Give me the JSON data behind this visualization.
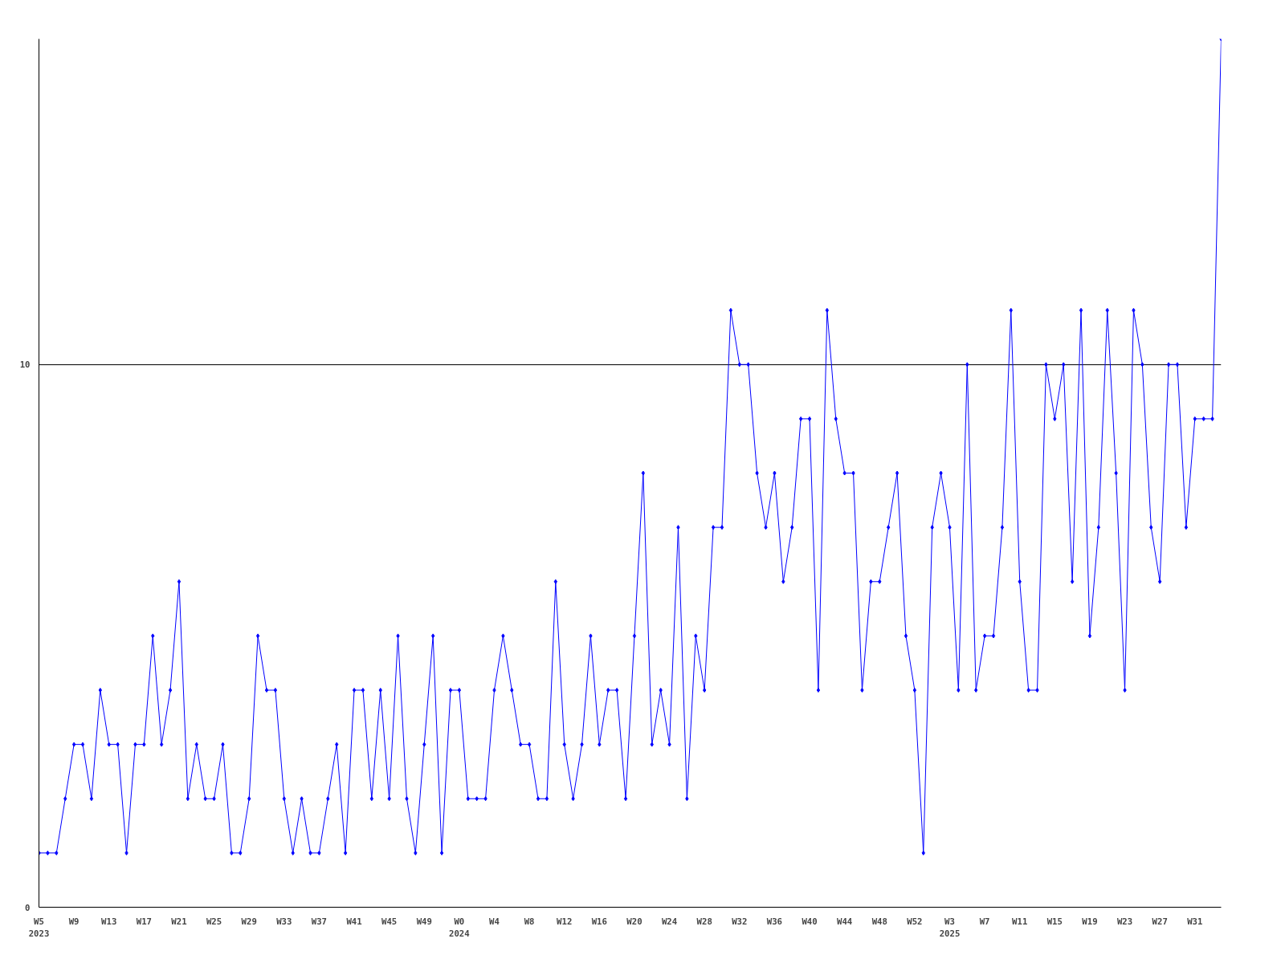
{
  "chart_data": {
    "type": "line",
    "categories": [
      "W5\n2023",
      null,
      null,
      null,
      "W9",
      null,
      null,
      null,
      "W13",
      null,
      null,
      null,
      "W17",
      null,
      null,
      null,
      "W21",
      null,
      null,
      null,
      "W25",
      null,
      null,
      null,
      "W29",
      null,
      null,
      null,
      "W33",
      null,
      null,
      null,
      "W37",
      null,
      null,
      null,
      "W41",
      null,
      null,
      null,
      "W45",
      null,
      null,
      null,
      "W49",
      null,
      null,
      null,
      "W0\n2024",
      null,
      null,
      null,
      "W4",
      null,
      null,
      null,
      "W8",
      null,
      null,
      null,
      "W12",
      null,
      null,
      null,
      "W16",
      null,
      null,
      null,
      "W20",
      null,
      null,
      null,
      "W24",
      null,
      null,
      null,
      "W28",
      null,
      null,
      null,
      "W32",
      null,
      null,
      null,
      "W36",
      null,
      null,
      null,
      "W40",
      null,
      null,
      null,
      "W44",
      null,
      null,
      null,
      "W48",
      null,
      null,
      null,
      "W52",
      null,
      null,
      null,
      "W3\n2025",
      null,
      null,
      null,
      "W7",
      null,
      null,
      null,
      "W11",
      null,
      null,
      null,
      "W15",
      null,
      null,
      null,
      "W19",
      null,
      null,
      null,
      "W23",
      null,
      null,
      null,
      "W27",
      null,
      null,
      null,
      "W31",
      null,
      null,
      null
    ],
    "series": [
      {
        "color": "#0000ff",
        "values": [
          1,
          1,
          1,
          2,
          3,
          3,
          2,
          4,
          3,
          3,
          1,
          3,
          3,
          5,
          3,
          4,
          6,
          2,
          3,
          2,
          2,
          3,
          1,
          1,
          2,
          5,
          4,
          4,
          2,
          1,
          2,
          1,
          1,
          2,
          3,
          1,
          4,
          4,
          2,
          4,
          2,
          5,
          2,
          1,
          3,
          5,
          1,
          4,
          4,
          2,
          2,
          2,
          4,
          5,
          4,
          3,
          3,
          2,
          2,
          6,
          3,
          2,
          3,
          5,
          3,
          4,
          4,
          2,
          5,
          8,
          3,
          4,
          3,
          7,
          2,
          5,
          4,
          7,
          7,
          11,
          10,
          10,
          8,
          7,
          8,
          6,
          7,
          9,
          9,
          4,
          11,
          9,
          8,
          8,
          4,
          6,
          6,
          7,
          8,
          5,
          4,
          1,
          7,
          8,
          7,
          4,
          10,
          4,
          5,
          5,
          7,
          11,
          6,
          4,
          4,
          10,
          9,
          10,
          6,
          11,
          5,
          7,
          11,
          8,
          4,
          11,
          10,
          7,
          6,
          10,
          10,
          7,
          9,
          9,
          9,
          16
        ]
      }
    ],
    "ylim": [
      0,
      16
    ],
    "yticks": [
      0,
      10
    ],
    "grid": "y",
    "marker": "diamond",
    "line_style": "solid"
  }
}
